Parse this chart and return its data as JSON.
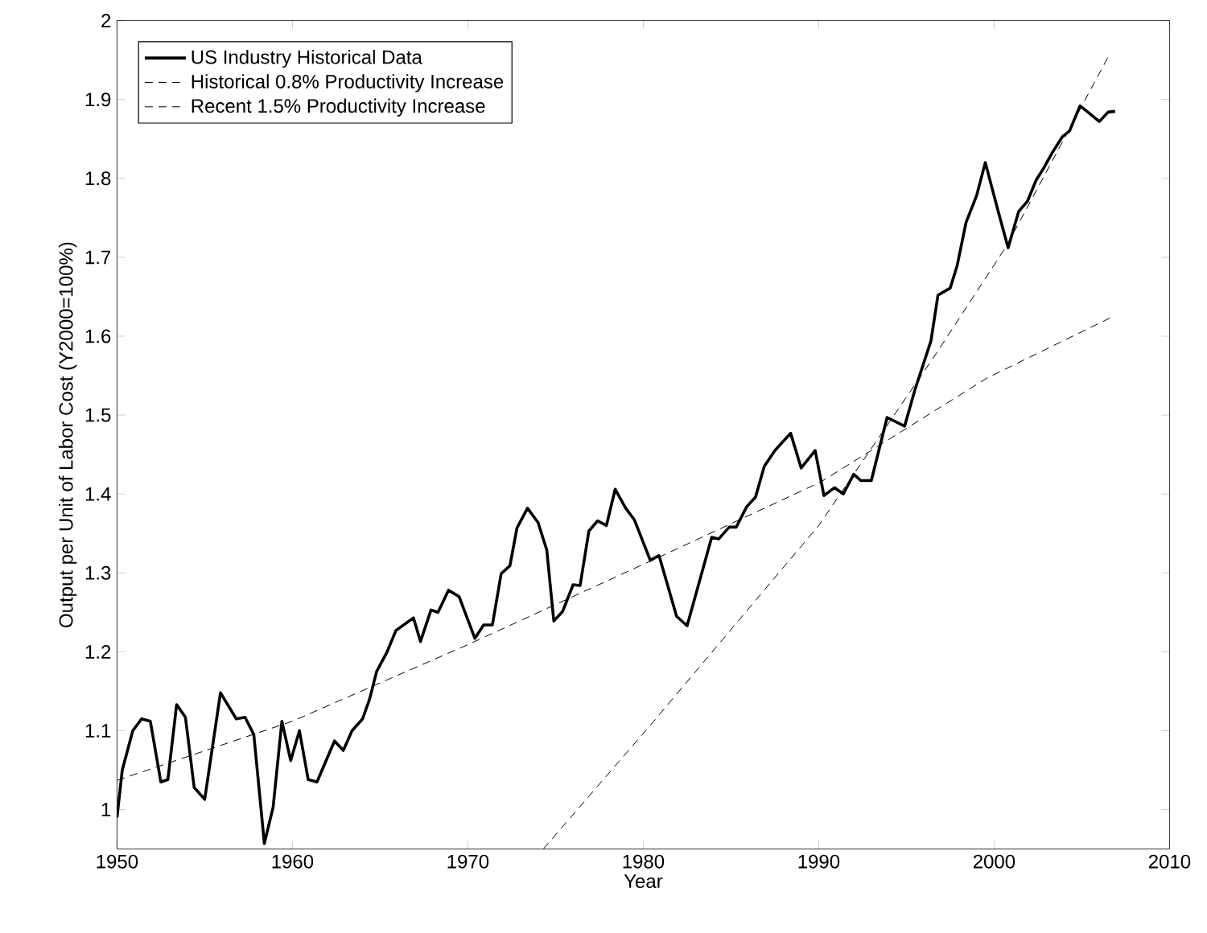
{
  "chart_data": {
    "type": "line",
    "xlabel": "Year",
    "ylabel": "Output per Unit of Labor Cost (Y2000=100%)",
    "xlim": [
      1950,
      2010
    ],
    "ylim": [
      0.95,
      2
    ],
    "xticks": [
      1950,
      1960,
      1970,
      1980,
      1990,
      2000,
      2010
    ],
    "yticks": [
      1,
      1.1,
      1.2,
      1.3,
      1.4,
      1.5,
      1.6,
      1.7,
      1.8,
      1.9,
      2
    ],
    "grid": false,
    "legend": "top left",
    "marker": "none",
    "series": [
      {
        "name": "US Industry Historical Data",
        "color": "#000000",
        "line_style": "solid",
        "x": [
          1950.0,
          1950.3,
          1950.9,
          1951.4,
          1951.9,
          1952.5,
          1952.9,
          1953.4,
          1953.9,
          1954.4,
          1955.0,
          1955.9,
          1956.8,
          1957.3,
          1957.8,
          1958.4,
          1958.9,
          1959.4,
          1959.9,
          1960.4,
          1960.9,
          1961.4,
          1962.4,
          1962.9,
          1963.4,
          1964.0,
          1964.4,
          1964.8,
          1965.4,
          1965.9,
          1966.9,
          1967.3,
          1967.9,
          1968.3,
          1968.9,
          1969.5,
          1970.4,
          1970.9,
          1971.4,
          1971.9,
          1972.4,
          1972.8,
          1973.4,
          1974.0,
          1974.5,
          1974.9,
          1975.4,
          1976.0,
          1976.4,
          1976.9,
          1977.4,
          1977.9,
          1978.4,
          1979.0,
          1979.5,
          1980.4,
          1980.9,
          1981.9,
          1982.5,
          1983.9,
          1984.3,
          1984.9,
          1985.3,
          1985.9,
          1986.4,
          1986.9,
          1987.5,
          1988.4,
          1989.0,
          1989.8,
          1990.3,
          1990.9,
          1991.4,
          1992.0,
          1992.4,
          1993.0,
          1993.9,
          1994.9,
          1995.5,
          1996.4,
          1996.8,
          1997.5,
          1997.9,
          1998.4,
          1999.0,
          1999.5,
          2000.2,
          2000.8,
          2001.4,
          2001.9,
          2002.4,
          2002.8,
          2003.3,
          2003.9,
          2004.3,
          2004.9,
          2005.4,
          2006.0,
          2006.5,
          2006.9
        ],
        "values": [
          0.99,
          1.05,
          1.1,
          1.115,
          1.112,
          1.035,
          1.038,
          1.133,
          1.117,
          1.028,
          1.013,
          1.148,
          1.115,
          1.117,
          1.095,
          0.957,
          1.003,
          1.112,
          1.062,
          1.1,
          1.038,
          1.035,
          1.087,
          1.075,
          1.1,
          1.115,
          1.14,
          1.175,
          1.2,
          1.227,
          1.243,
          1.213,
          1.253,
          1.25,
          1.278,
          1.27,
          1.217,
          1.234,
          1.234,
          1.299,
          1.309,
          1.357,
          1.382,
          1.364,
          1.329,
          1.239,
          1.251,
          1.285,
          1.284,
          1.353,
          1.366,
          1.36,
          1.406,
          1.382,
          1.367,
          1.316,
          1.322,
          1.245,
          1.233,
          1.345,
          1.343,
          1.358,
          1.358,
          1.384,
          1.396,
          1.435,
          1.455,
          1.477,
          1.433,
          1.455,
          1.398,
          1.408,
          1.4,
          1.425,
          1.417,
          1.417,
          1.497,
          1.486,
          1.533,
          1.594,
          1.652,
          1.661,
          1.69,
          1.744,
          1.778,
          1.82,
          1.761,
          1.712,
          1.758,
          1.771,
          1.798,
          1.812,
          1.832,
          1.853,
          1.86,
          1.892,
          1.883,
          1.872,
          1.884,
          1.885
        ]
      },
      {
        "name": "Historical 0.8% Productivity Increase",
        "color": "#000000",
        "line_style": "dashed",
        "x": [
          1950.0,
          1960.0,
          1970.0,
          1981.2,
          1990.1,
          1999.6,
          2006.6
        ],
        "values": [
          1.037,
          1.112,
          1.209,
          1.323,
          1.415,
          1.547,
          1.623
        ]
      },
      {
        "name": "Recent 1.5% Productivity Increase",
        "color": "#000000",
        "line_style": "dashed",
        "x": [
          1974.3,
          1980.6,
          1990.0,
          1996.7,
          2000.7,
          2006.6
        ],
        "values": [
          0.95,
          1.112,
          1.36,
          1.578,
          1.714,
          1.958
        ]
      }
    ]
  }
}
